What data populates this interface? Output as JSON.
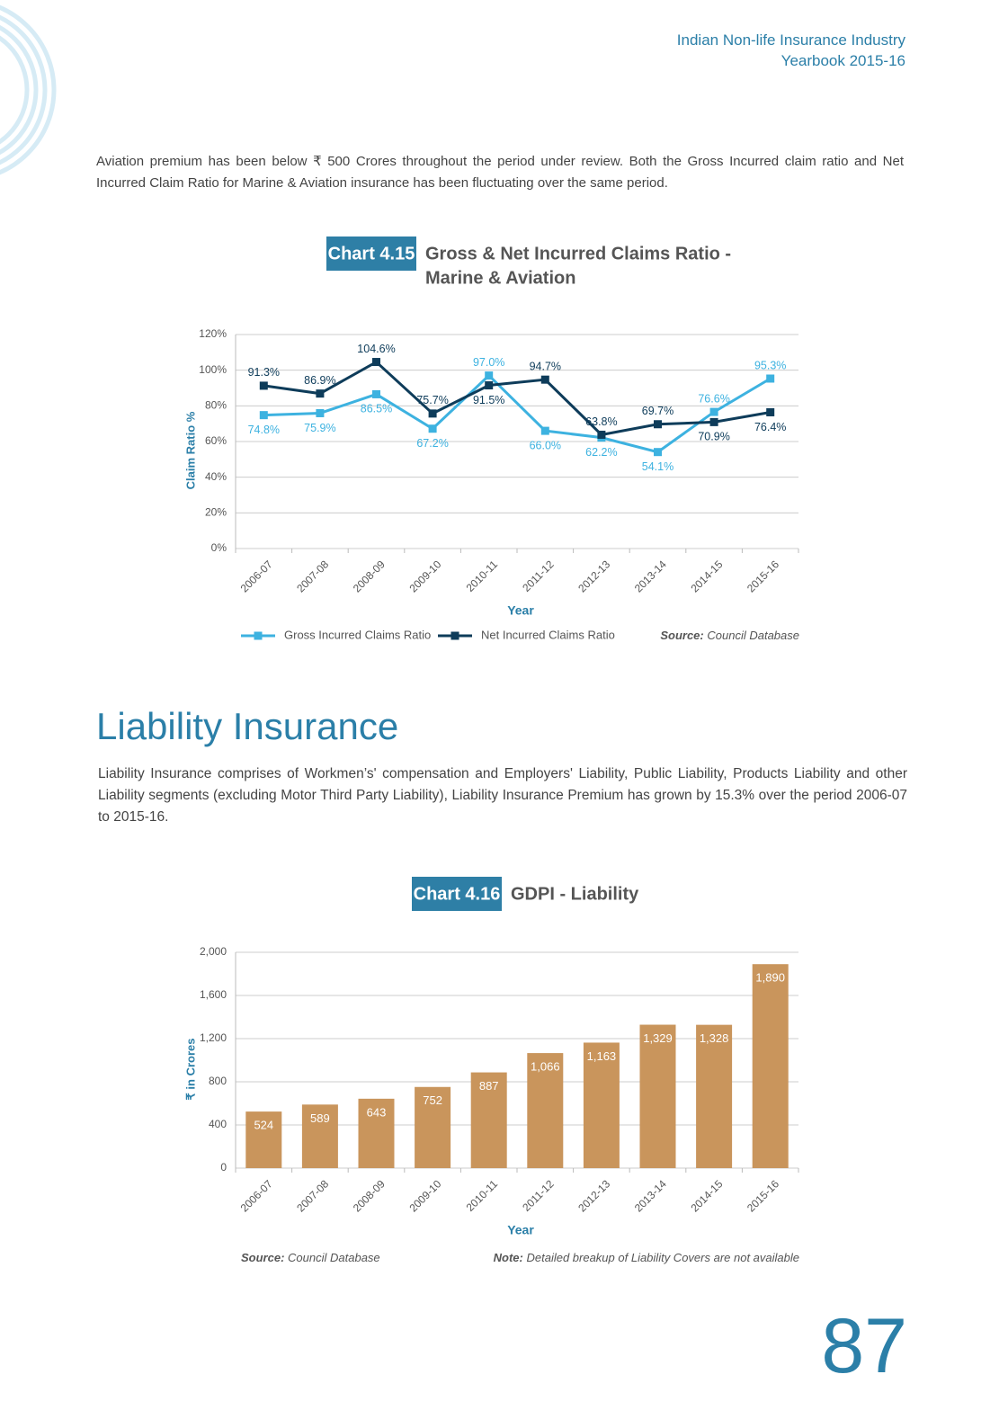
{
  "header": {
    "line1": "Indian Non-life Insurance Industry",
    "line2": "Yearbook 2015-16"
  },
  "intro_paragraph": "Aviation premium has been below ₹ 500 Crores throughout the period under review. Both the Gross Incurred claim ratio and Net Incurred Claim Ratio for Marine & Aviation insurance has been fluctuating over the same period.",
  "section_title": "Liability Insurance",
  "section_paragraph": "Liability Insurance comprises of Workmen’s' compensation and Employers' Liability, Public Liability, Products Liability and other Liability segments (excluding Motor Third Party Liability), Liability Insurance Premium has grown by 15.3% over the period 2006-07 to 2015-16.",
  "page_number": "87",
  "chart_data": [
    {
      "type": "line",
      "chart_label": "Chart 4.15",
      "title": [
        "Gross & Net Incurred Claims Ratio -",
        "Marine & Aviation"
      ],
      "x_label": "Year",
      "y_label": "Claim Ratio %",
      "categories": [
        "2006-07",
        "2007-08",
        "2008-09",
        "2009-10",
        "2010-11",
        "2011-12",
        "2012-13",
        "2013-14",
        "2014-15",
        "2015-16"
      ],
      "series": [
        {
          "name": "Gross Incurred Claims Ratio",
          "color": "#3db2e0",
          "values": [
            74.8,
            75.9,
            86.5,
            67.2,
            97.0,
            66.0,
            62.2,
            54.1,
            76.6,
            95.3
          ],
          "value_labels": [
            "74.8%",
            "75.9%",
            "86.5%",
            "67.2%",
            "97.0%",
            "66.0%",
            "62.2%",
            "54.1%",
            "76.6%",
            "95.3%"
          ]
        },
        {
          "name": "Net Incurred Claims Ratio",
          "color": "#0e3c5a",
          "values": [
            91.3,
            86.9,
            104.6,
            75.7,
            91.5,
            94.7,
            63.8,
            69.7,
            70.9,
            76.4
          ],
          "value_labels": [
            "91.3%",
            "86.9%",
            "104.6%",
            "75.7%",
            "91.5%",
            "94.7%",
            "63.8%",
            "69.7%",
            "70.9%",
            "76.4%"
          ]
        }
      ],
      "ylim": [
        0,
        120
      ],
      "yticks": [
        {
          "value": 0,
          "label": "0%"
        },
        {
          "value": 20,
          "label": "20%"
        },
        {
          "value": 40,
          "label": "40%"
        },
        {
          "value": 60,
          "label": "60%"
        },
        {
          "value": 80,
          "label": "80%"
        },
        {
          "value": 100,
          "label": "100%"
        },
        {
          "value": 120,
          "label": "120%"
        }
      ],
      "grid": true,
      "source": {
        "label": "Source:",
        "text": "Council Database"
      }
    },
    {
      "type": "bar",
      "chart_label": "Chart 4.16",
      "title": [
        "GDPI - Liability"
      ],
      "x_label": "Year",
      "y_label": "₹ in Crores",
      "categories": [
        "2006-07",
        "2007-08",
        "2008-09",
        "2009-10",
        "2010-11",
        "2011-12",
        "2012-13",
        "2013-14",
        "2014-15",
        "2015-16"
      ],
      "values": [
        524,
        589,
        643,
        752,
        887,
        1066,
        1163,
        1329,
        1328,
        1890
      ],
      "value_labels": [
        "524",
        "589",
        "643",
        "752",
        "887",
        "1,066",
        "1,163",
        "1,329",
        "1,328",
        "1,890"
      ],
      "color": "#c9955c",
      "ylim": [
        0,
        2000
      ],
      "yticks": [
        0,
        400,
        800,
        {
          "value": 1200,
          "label": "1,200"
        },
        {
          "value": 1600,
          "label": "1,600"
        },
        {
          "value": 2000,
          "label": "2,000"
        }
      ],
      "grid": true,
      "source": {
        "label": "Source:",
        "text": "Council Database"
      },
      "note": {
        "label": "Note:",
        "text": "Detailed breakup of Liability Covers are not available"
      }
    }
  ]
}
